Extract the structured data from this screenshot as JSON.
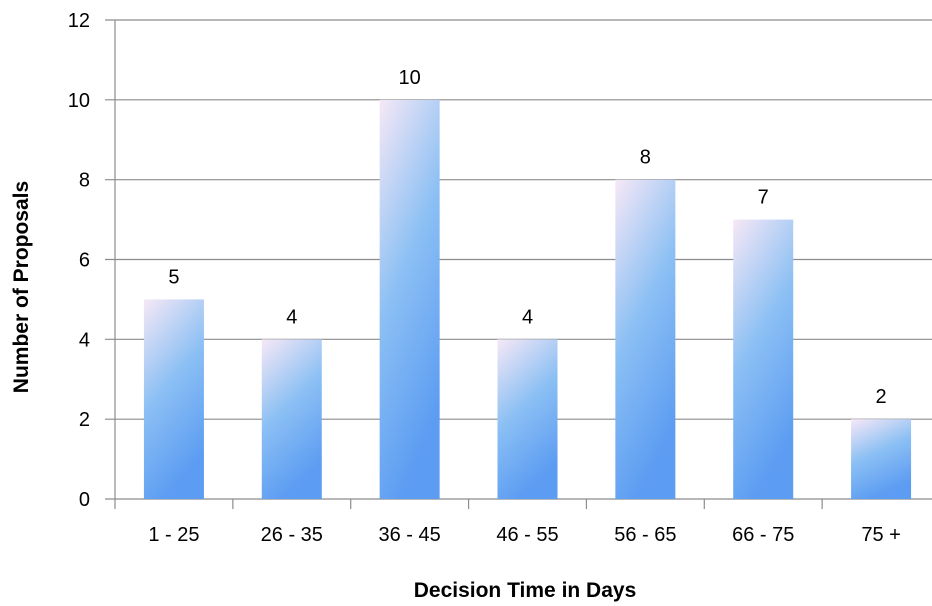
{
  "chart_data": {
    "type": "bar",
    "title": "",
    "xlabel": "Decision Time in Days",
    "ylabel": "Number of Proposals",
    "categories": [
      "1 - 25",
      "26 - 35",
      "36 - 45",
      "46 - 55",
      "56 - 65",
      "66 - 75",
      "75 +"
    ],
    "values": [
      5,
      4,
      10,
      4,
      8,
      7,
      2
    ],
    "ylim": [
      0,
      12
    ],
    "yticks": [
      0,
      2,
      4,
      6,
      8,
      10,
      12
    ],
    "grid": true,
    "legend": "none",
    "data_labels": true,
    "colors": {
      "bar_top": "#f6e8f6",
      "bar_mid": "#8cc0f4",
      "bar_bottom": "#5c9cf2",
      "grid": "#8c8c8c",
      "axis": "#8c8c8c"
    }
  }
}
